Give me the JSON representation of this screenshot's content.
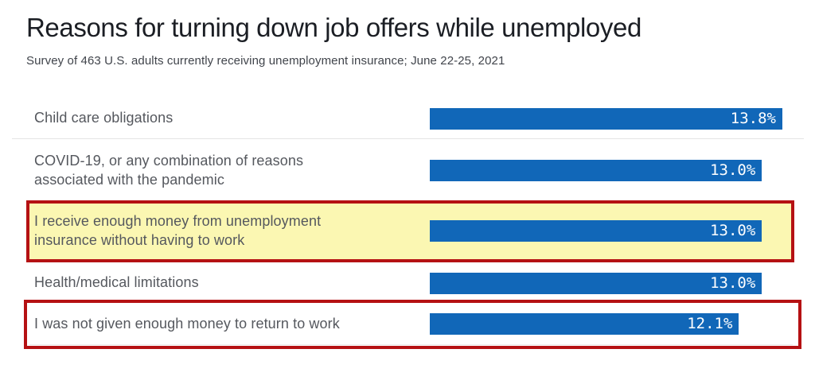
{
  "page": {
    "title": "Reasons for turning down job offers while unemployed",
    "subtitle": "Survey of 463 U.S. adults currently receiving unemployment insurance; June 22-25, 2021"
  },
  "colors": {
    "bar_blue": "#1167b8",
    "highlight_border_red": "#b51113",
    "highlight_fill_yellow": "#fbf7b2",
    "divider_gray": "#e4e4e4",
    "title_text": "#1b1e24",
    "subtitle_text": "#40444b",
    "label_text": "#55585e",
    "value_text": "#ffffff"
  },
  "chart_data": {
    "type": "bar",
    "orientation": "horizontal",
    "title": "Reasons for turning down job offers while unemployed",
    "subtitle": "Survey of 463 U.S. adults currently receiving unemployment insurance; June 22-25, 2021",
    "xlabel": "",
    "ylabel": "",
    "xlim": [
      0,
      13.8
    ],
    "grid": false,
    "legend": false,
    "value_labels_inside_bars": true,
    "categories": [
      "Child care obligations",
      "COVID-19, or any combination of reasons associated with the pandemic",
      "I receive enough money from unemployment insurance without having to work",
      "Health/medical limitations",
      "I was not given enough money to return to work"
    ],
    "label_lines": [
      [
        "Child care obligations"
      ],
      [
        "COVID-19, or any combination of reasons",
        "associated with the pandemic"
      ],
      [
        "I receive enough money from unemployment",
        "insurance without having to work"
      ],
      [
        "Health/medical limitations"
      ],
      [
        "I was not given enough money to return to work"
      ]
    ],
    "values": [
      13.8,
      13.0,
      13.0,
      13.0,
      12.1
    ],
    "value_labels": [
      "13.8%",
      "13.0%",
      "13.0%",
      "13.0%",
      "12.1%"
    ],
    "highlights": [
      {
        "index": 2,
        "style": "yellow-fill-red-border"
      },
      {
        "index": 4,
        "style": "red-border"
      }
    ],
    "dividers_after_rows": [
      0
    ]
  }
}
